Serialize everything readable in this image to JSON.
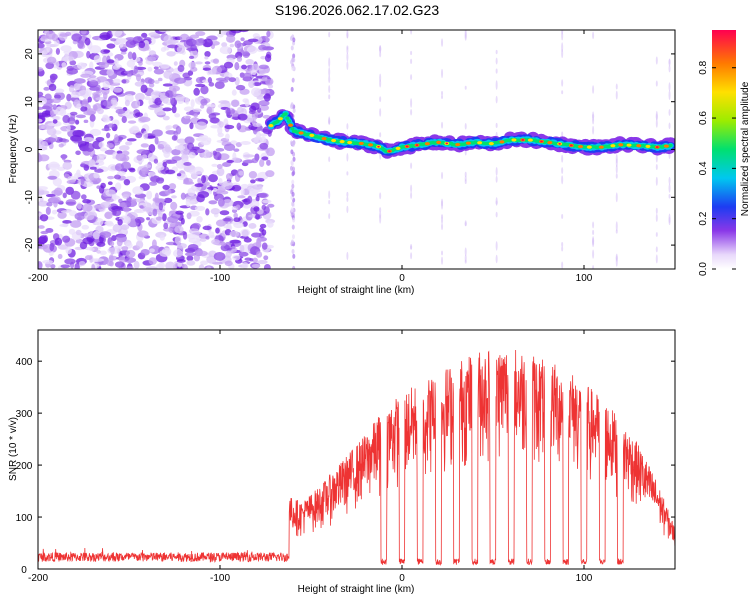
{
  "title": "S196.2026.062.17.02.G23",
  "chart_data": [
    {
      "type": "heatmap",
      "xlabel": "Height of straight line (km)",
      "ylabel": "Frequency (Hz)",
      "xlim": [
        -200,
        150
      ],
      "ylim": [
        -25,
        25
      ],
      "xticks": [
        -200,
        -100,
        0,
        100
      ],
      "yticks": [
        -20,
        -10,
        0,
        10,
        20
      ],
      "colorbar": {
        "label": "Normalized spectral amplitude",
        "range": [
          0,
          0.95
        ],
        "ticks": [
          0.0,
          0.2,
          0.4,
          0.6,
          0.8
        ],
        "tick_labels": [
          "0.0",
          "0.2",
          "0.4",
          "0.6",
          "0.8"
        ]
      },
      "ridge": {
        "x": [
          -72,
          -68,
          -64,
          -60,
          -56,
          -50,
          -40,
          -30,
          -20,
          -12,
          -8,
          0,
          10,
          20,
          30,
          40,
          50,
          60,
          70,
          80,
          90,
          100,
          110,
          120,
          130,
          140,
          148
        ],
        "y": [
          5,
          6,
          7.5,
          4,
          3.5,
          3,
          2,
          1.5,
          1.2,
          0.5,
          -0.5,
          0.5,
          1,
          1.5,
          1,
          1.5,
          1.2,
          2,
          2,
          1.5,
          1,
          0.5,
          0.5,
          1,
          0.8,
          0.5,
          0.8
        ]
      }
    },
    {
      "type": "line",
      "xlabel": "Height of straight line (km)",
      "ylabel": "SNR (10 * v/v)",
      "xlim": [
        -200,
        150
      ],
      "ylim": [
        0,
        460
      ],
      "xticks": [
        -200,
        -100,
        0,
        100
      ],
      "yticks": [
        0,
        100,
        200,
        300,
        400
      ],
      "series": [
        {
          "name": "SNR",
          "color": "#ee3333",
          "envelope_x": [
            -200,
            -150,
            -100,
            -70,
            -62,
            -55,
            -45,
            -30,
            -20,
            -10,
            0,
            10,
            20,
            30,
            40,
            50,
            60,
            70,
            80,
            90,
            100,
            110,
            120,
            130,
            140,
            150
          ],
          "envelope_y": [
            30,
            30,
            30,
            30,
            140,
            130,
            160,
            220,
            260,
            310,
            340,
            360,
            380,
            400,
            420,
            430,
            430,
            420,
            400,
            390,
            360,
            330,
            290,
            240,
            170,
            80
          ],
          "dips_x": [
            -10,
            0,
            10,
            20,
            30,
            40,
            50,
            60,
            70,
            80,
            90,
            100,
            110,
            120
          ]
        }
      ]
    }
  ]
}
